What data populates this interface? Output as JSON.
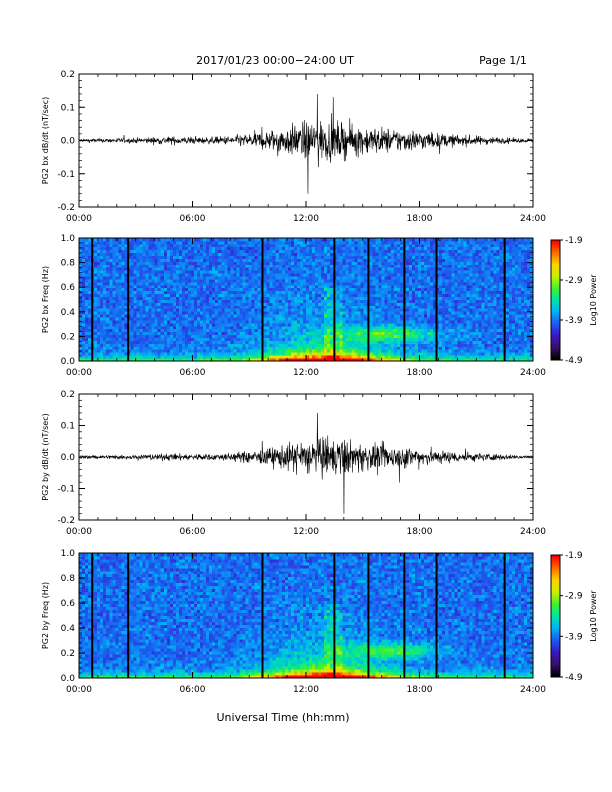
{
  "header": {
    "title": "2017/01/23  00:00−24:00 UT",
    "page": "Page 1/1"
  },
  "footer": {
    "xlabel": "Universal Time (hh:mm)"
  },
  "colors": {
    "trace": "#000000",
    "colormap": [
      "#000000",
      "#3a0f6e",
      "#3a18c8",
      "#1c5cf0",
      "#00b4f5",
      "#00e6a0",
      "#44f028",
      "#cdf000",
      "#ffd200",
      "#ff6a00",
      "#ff0000"
    ]
  },
  "chart_data": [
    {
      "type": "line",
      "ylabel": "PG2 bx dB/dt (nT/sec)",
      "xlim": [
        0,
        24
      ],
      "ylim": [
        -0.2,
        0.2
      ],
      "x_ticks": [
        "00:00",
        "06:00",
        "12:00",
        "18:00",
        "24:00"
      ],
      "y_ticks": [
        "0.2",
        "0.1",
        "0.0",
        "-0.1",
        "-0.2"
      ],
      "grid": false,
      "series": [
        {
          "x_hours": [
            0,
            1,
            2,
            3,
            4,
            5,
            6,
            7,
            8,
            9,
            10,
            11,
            12,
            13,
            14,
            15,
            16,
            17,
            18,
            19,
            20,
            21,
            22,
            23,
            24
          ],
          "amplitude": [
            0.006,
            0.007,
            0.008,
            0.009,
            0.012,
            0.014,
            0.012,
            0.012,
            0.016,
            0.024,
            0.035,
            0.05,
            0.065,
            0.07,
            0.06,
            0.05,
            0.045,
            0.04,
            0.035,
            0.025,
            0.02,
            0.016,
            0.012,
            0.008,
            0.006
          ],
          "peak_max": 0.14,
          "peak_min": -0.16
        }
      ]
    },
    {
      "type": "heatmap",
      "ylabel": "PG2 bx Freq (Hz)",
      "xlim": [
        0,
        24
      ],
      "ylim": [
        0.0,
        1.0
      ],
      "x_ticks": [
        "00:00",
        "06:00",
        "12:00",
        "18:00",
        "24:00"
      ],
      "y_ticks": [
        "1.0",
        "0.8",
        "0.6",
        "0.4",
        "0.2",
        "0.0"
      ],
      "colorbar": {
        "label": "Log10 Power",
        "min": -4.9,
        "max": -1.9,
        "ticks": [
          "-1.9",
          "-2.9",
          "-3.9",
          "-4.9"
        ]
      },
      "gaps_hours": [
        0.7,
        2.6,
        9.7,
        13.5,
        15.3,
        17.2,
        18.9,
        22.5
      ]
    },
    {
      "type": "line",
      "ylabel": "PG2 by dB/dt (nT/sec)",
      "xlim": [
        0,
        24
      ],
      "ylim": [
        -0.2,
        0.2
      ],
      "x_ticks": [
        "00:00",
        "06:00",
        "12:00",
        "18:00",
        "24:00"
      ],
      "y_ticks": [
        "0.2",
        "0.1",
        "0.0",
        "-0.1",
        "-0.2"
      ],
      "grid": false,
      "series": [
        {
          "x_hours": [
            0,
            1,
            2,
            3,
            4,
            5,
            6,
            7,
            8,
            9,
            10,
            11,
            12,
            13,
            14,
            15,
            16,
            17,
            18,
            19,
            20,
            21,
            22,
            23,
            24
          ],
          "amplitude": [
            0.006,
            0.007,
            0.008,
            0.009,
            0.011,
            0.013,
            0.012,
            0.012,
            0.015,
            0.022,
            0.032,
            0.048,
            0.065,
            0.075,
            0.065,
            0.05,
            0.045,
            0.04,
            0.035,
            0.025,
            0.02,
            0.016,
            0.012,
            0.008,
            0.006
          ],
          "peak_max": 0.14,
          "peak_min": -0.18
        }
      ]
    },
    {
      "type": "heatmap",
      "ylabel": "PG2 by Freq (Hz)",
      "xlim": [
        0,
        24
      ],
      "ylim": [
        0.0,
        1.0
      ],
      "x_ticks": [
        "00:00",
        "06:00",
        "12:00",
        "18:00",
        "24:00"
      ],
      "y_ticks": [
        "1.0",
        "0.8",
        "0.6",
        "0.4",
        "0.2",
        "0.0"
      ],
      "colorbar": {
        "label": "Log10 Power",
        "min": -4.9,
        "max": -1.9,
        "ticks": [
          "-1.9",
          "-2.9",
          "-3.9",
          "-4.9"
        ]
      },
      "gaps_hours": [
        0.7,
        2.6,
        9.7,
        13.5,
        15.3,
        17.2,
        18.9,
        22.5
      ]
    }
  ]
}
